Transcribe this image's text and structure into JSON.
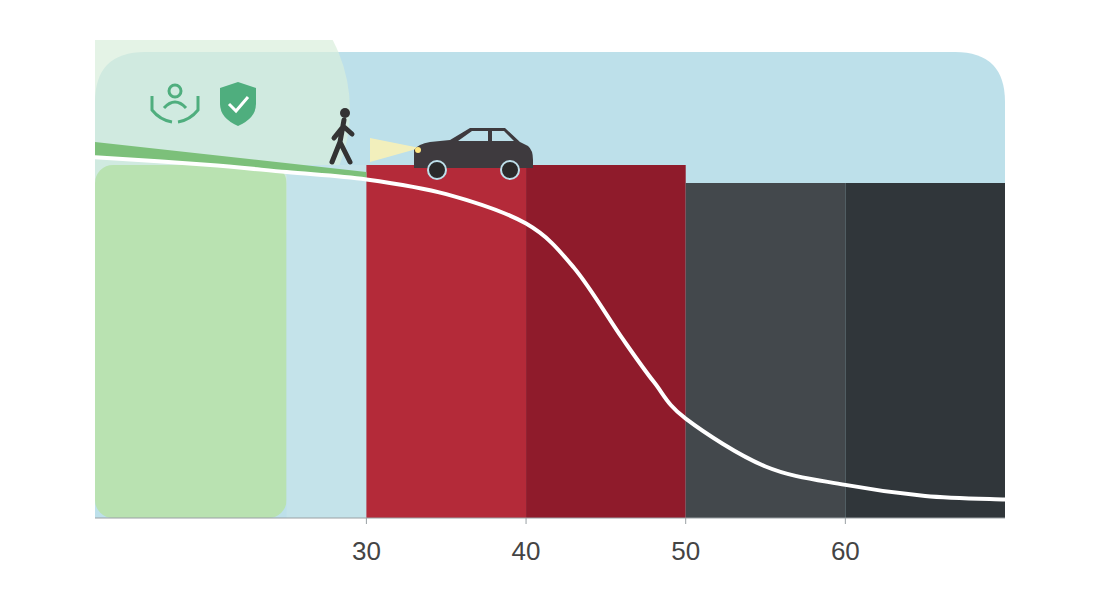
{
  "chart_data": {
    "type": "line",
    "x": [
      13,
      20,
      25,
      30,
      35,
      40,
      43,
      46,
      48,
      50,
      55,
      60,
      65,
      70
    ],
    "values": [
      98,
      96,
      94,
      92,
      88,
      80,
      68,
      49,
      37,
      27,
      14,
      9,
      6,
      5
    ],
    "color": "#ffffff",
    "xlim": [
      13,
      70
    ],
    "xticks": [
      30,
      40,
      50,
      60
    ],
    "ylim": [
      0,
      100
    ],
    "tick_labels": "x",
    "zones": [
      {
        "start": 13,
        "end": 25,
        "color": "#b9e2b1"
      },
      {
        "start": 25,
        "end": 30,
        "color": "#c4e3ea"
      },
      {
        "start": 30,
        "end": 40,
        "color": "#b42a39"
      },
      {
        "start": 40,
        "end": 50,
        "color": "#8f1b2b"
      },
      {
        "start": 50,
        "end": 60,
        "color": "#43484c"
      },
      {
        "start": 60,
        "end": 70,
        "color": "#30363a"
      }
    ]
  }
}
